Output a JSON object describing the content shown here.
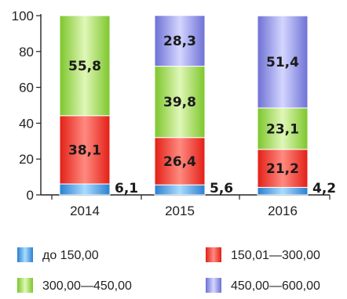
{
  "chart_data": {
    "type": "bar",
    "stacked": true,
    "title": "",
    "xlabel": "",
    "ylabel": "",
    "ylim": [
      0,
      100
    ],
    "yticks": [
      0,
      20,
      40,
      60,
      80,
      100
    ],
    "ytick_labels": [
      "0",
      "20",
      "40",
      "60",
      "80",
      "100"
    ],
    "categories": [
      "2014",
      "2015",
      "2016"
    ],
    "series": [
      {
        "name": "до 150,00",
        "color": "#2f8fe0",
        "values": [
          6.1,
          5.6,
          4.2
        ],
        "labels": [
          "6,1",
          "5,6",
          "4,2"
        ],
        "label_position": "outside-right"
      },
      {
        "name": "150,01—300,00",
        "color": "#ee2a20",
        "values": [
          38.1,
          26.4,
          21.2
        ],
        "labels": [
          "38,1",
          "26,4",
          "21,2"
        ],
        "label_position": "inside"
      },
      {
        "name": "300,00—450,00",
        "color": "#8fd33a",
        "values": [
          55.8,
          39.8,
          23.1
        ],
        "labels": [
          "55,8",
          "39,8",
          "23,1"
        ],
        "label_position": "inside"
      },
      {
        "name": "450,00—600,00",
        "color": "#7d80dd",
        "values": [
          0,
          28.3,
          51.4
        ],
        "labels": [
          "",
          "28,3",
          "51,4"
        ],
        "label_position": "inside"
      }
    ],
    "grid": false,
    "legend_position": "bottom"
  }
}
